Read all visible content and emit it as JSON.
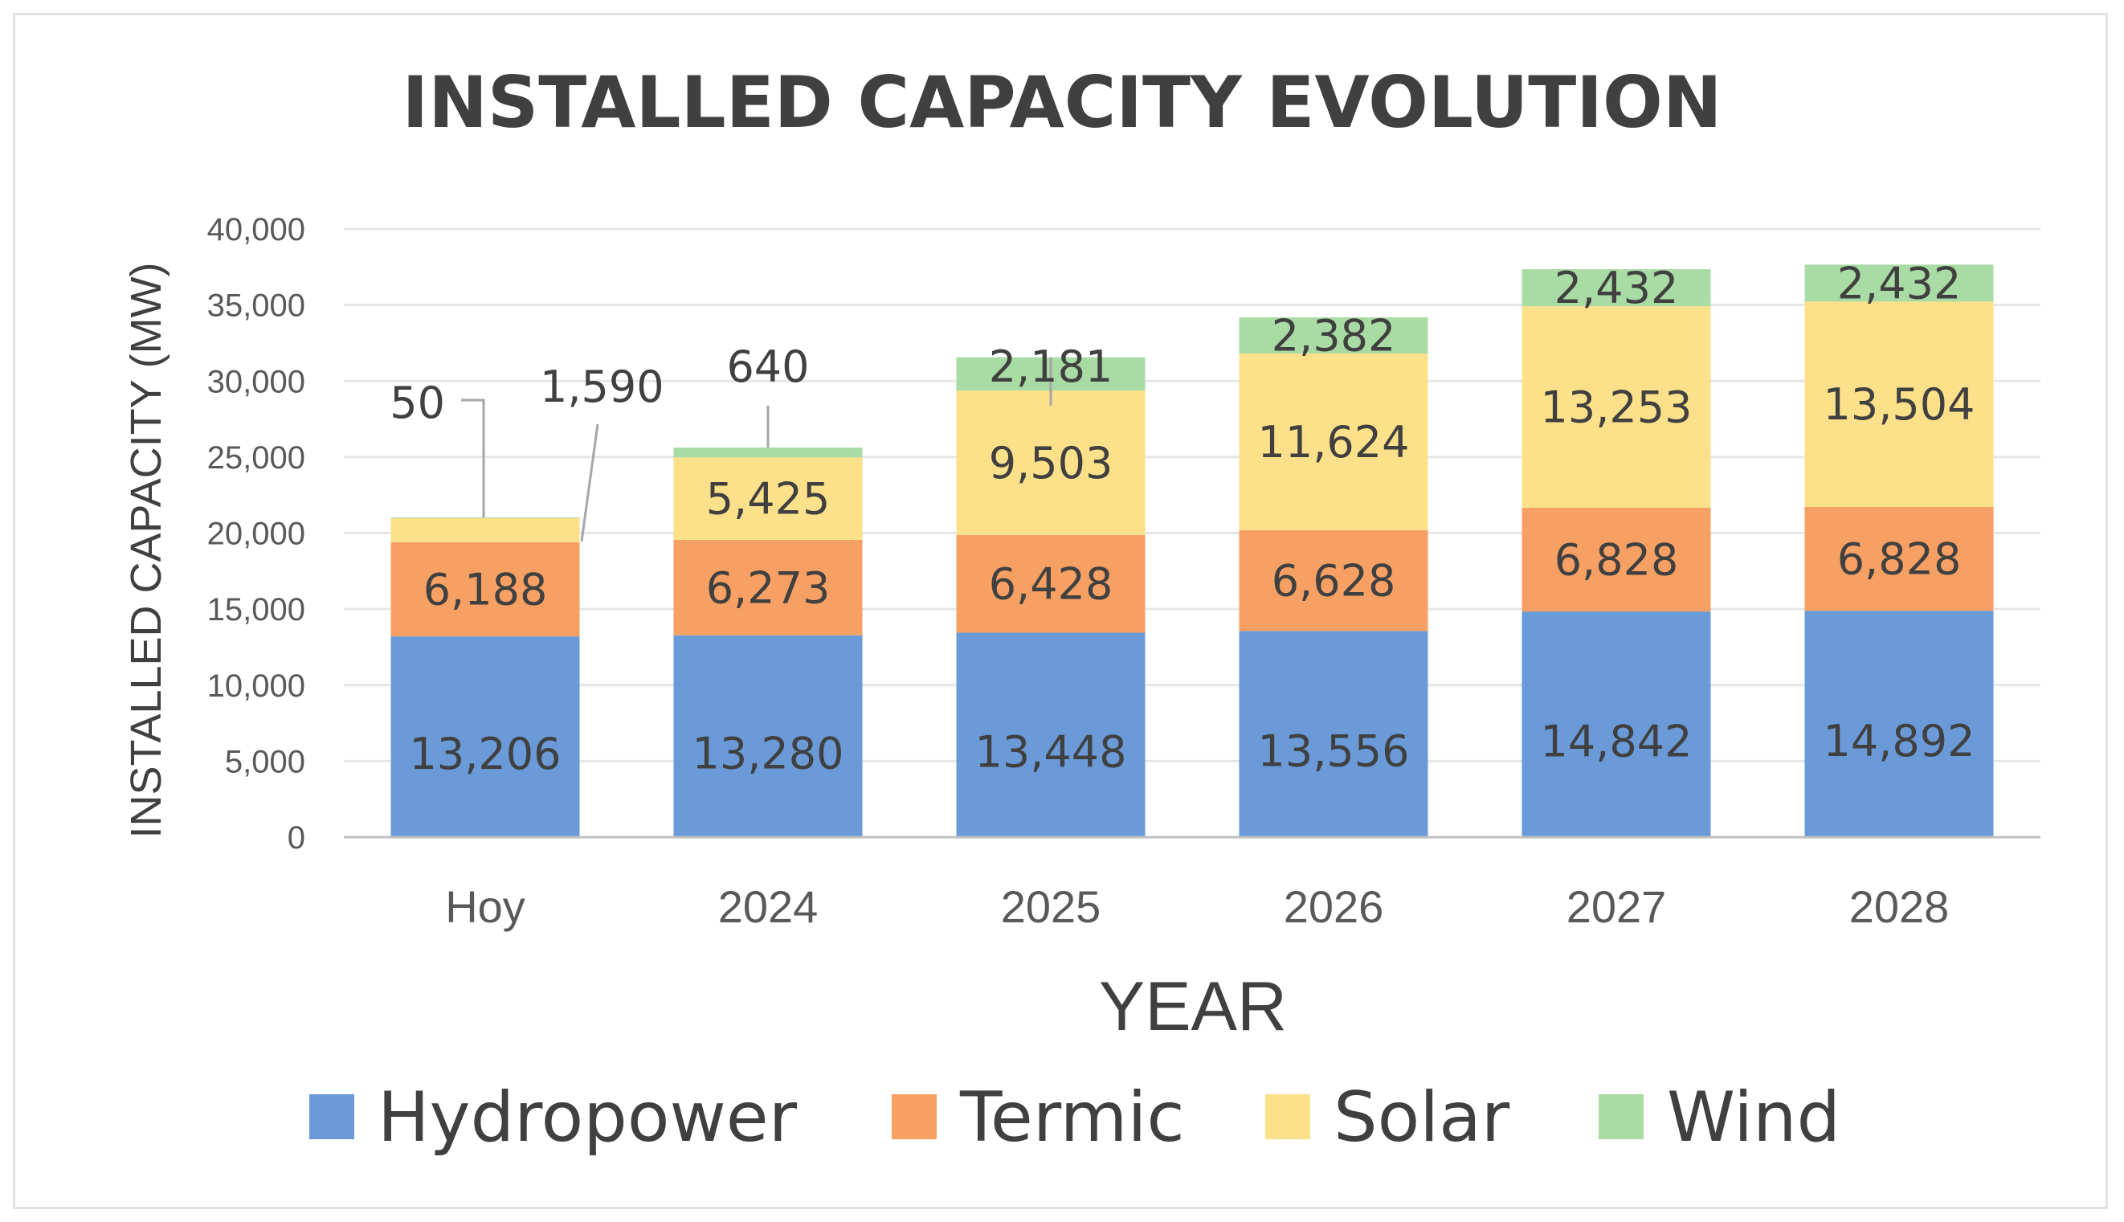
{
  "chart_data": {
    "type": "bar",
    "stacked": true,
    "title": "INSTALLED CAPACITY EVOLUTION",
    "xlabel": "YEAR",
    "ylabel": "INSTALLED CAPACITY (MW)",
    "ylim": [
      0,
      40000
    ],
    "yticks": [
      0,
      5000,
      10000,
      15000,
      20000,
      25000,
      30000,
      35000,
      40000
    ],
    "ytick_labels": [
      "0",
      "5,000",
      "10,000",
      "15,000",
      "20,000",
      "25,000",
      "30,000",
      "35,000",
      "40,000"
    ],
    "grid": true,
    "legend_position": "bottom",
    "categories": [
      "Hoy",
      "2024",
      "2025",
      "2026",
      "2027",
      "2028"
    ],
    "series": [
      {
        "name": "Hydropower",
        "color": "#6a9bd8",
        "values": [
          13206,
          13280,
          13448,
          13556,
          14842,
          14892
        ],
        "labels": [
          "13,206",
          "13,280",
          "13,448",
          "13,556",
          "14,842",
          "14,892"
        ]
      },
      {
        "name": "Termic",
        "color": "#f7a064",
        "values": [
          6188,
          6273,
          6428,
          6628,
          6828,
          6828
        ],
        "labels": [
          "6,188",
          "6,273",
          "6,428",
          "6,628",
          "6,828",
          "6,828"
        ]
      },
      {
        "name": "Solar",
        "color": "#fde08a",
        "values": [
          1590,
          5425,
          9503,
          11624,
          13253,
          13504
        ],
        "labels": [
          "1,590",
          "5,425",
          "9,503",
          "11,624",
          "13,253",
          "13,504"
        ]
      },
      {
        "name": "Wind",
        "color": "#a9dba4",
        "values": [
          50,
          640,
          2181,
          2382,
          2432,
          2432
        ],
        "labels": [
          "50",
          "640",
          "2,181",
          "2,382",
          "2,432",
          "2,432"
        ]
      }
    ]
  }
}
